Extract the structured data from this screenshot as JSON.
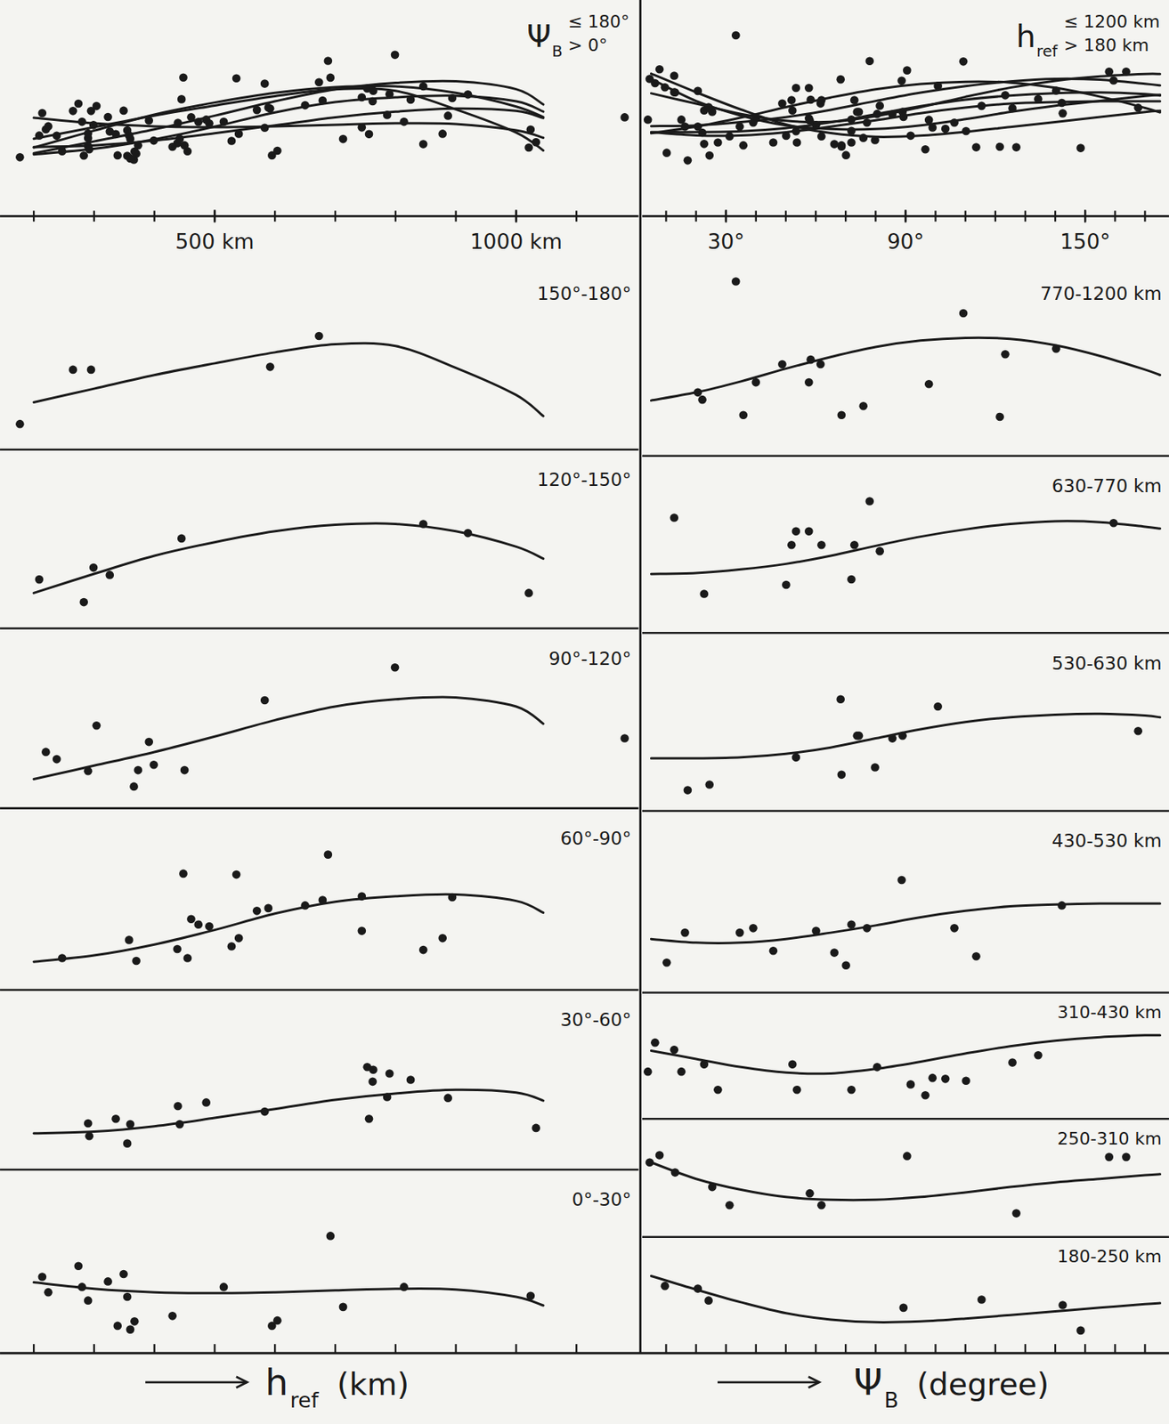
{
  "chart_data": [
    {
      "type": "scatter",
      "overlay_label": {
        "symbol": "Ψ",
        "subscript": "B",
        "upper": "≤ 180°",
        "lower": "> 0°"
      },
      "x_label": {
        "symbol": "h",
        "subscript": "ref",
        "unit": "(km)"
      },
      "xlim": [
        144,
        1203
      ],
      "ylim": [
        0,
        100
      ],
      "overlay_ylim": [
        -20,
        110
      ],
      "xticks": [
        {
          "value": 500,
          "label": "500 km"
        },
        {
          "value": 1000,
          "label": "1000 km"
        }
      ],
      "xminor": [
        200,
        300,
        400,
        500,
        600,
        700,
        800,
        900,
        1000,
        1100
      ],
      "tick_labels": "x",
      "curve_x": [
        200,
        300,
        400,
        500,
        600,
        700,
        800,
        900,
        1000,
        1045
      ],
      "panels": [
        {
          "title": "150°-180°",
          "x": [
            177,
            265,
            295,
            592,
            673
          ],
          "values": [
            13.7,
            42.9,
            42.9,
            44.4,
            61
          ],
          "curve": [
            25.4,
            32.7,
            40,
            46.3,
            52.2,
            56.6,
            55.6,
            43.9,
            29.3,
            18
          ]
        },
        {
          "title": "120°-150°",
          "x": [
            209,
            283,
            299,
            326,
            445,
            846,
            920,
            1021
          ],
          "values": [
            27.4,
            14.7,
            34,
            29.9,
            50.3,
            58.4,
            53.3,
            19.8
          ],
          "curve": [
            19.8,
            30.5,
            40.6,
            48.2,
            54.3,
            57.9,
            58.4,
            54.3,
            45.7,
            39
          ]
        },
        {
          "title": "90°-120°",
          "x": [
            220,
            238,
            290,
            304,
            366,
            373,
            391,
            399,
            450,
            583,
            799,
            1180
          ],
          "values": [
            31.3,
            27.3,
            20.7,
            46,
            12.1,
            21.2,
            36.9,
            24.2,
            21.2,
            60.1,
            78.3,
            38.9
          ],
          "curve": [
            16.2,
            23.7,
            31.3,
            39.9,
            49,
            56.6,
            60.6,
            61.6,
            56.6,
            47
          ]
        },
        {
          "title": "60°-90°",
          "x": [
            247,
            358,
            370,
            438,
            448,
            455,
            461,
            473,
            491,
            528,
            536,
            540,
            570,
            589,
            650,
            679,
            688,
            744,
            744,
            846,
            878,
            894
          ],
          "values": [
            17.5,
            27.5,
            16,
            22.5,
            64,
            17.5,
            39,
            36,
            35,
            24,
            63.5,
            28.5,
            43.5,
            45,
            46.5,
            49.5,
            74.5,
            51.5,
            32.5,
            22,
            28.5,
            51
          ],
          "curve": [
            15.5,
            19,
            25,
            33,
            42,
            48.5,
            51.5,
            52.5,
            49,
            42.5
          ]
        },
        {
          "title": "30°-60°",
          "x": [
            290,
            292,
            336,
            355,
            360,
            439,
            442,
            486,
            583,
            753,
            763,
            762,
            790,
            786,
            756,
            825,
            887,
            1033
          ],
          "values": [
            25.8,
            18.7,
            28.3,
            14.6,
            25.3,
            35.4,
            25.3,
            37.4,
            32.3,
            57.1,
            55.6,
            49,
            53.5,
            40.4,
            28.3,
            50,
            39.9,
            23.2
          ],
          "curve": [
            20.2,
            21.2,
            24.2,
            28.8,
            33.8,
            38.9,
            42.4,
            44.4,
            42.9,
            38.4
          ]
        },
        {
          "title": "0°-30°",
          "x": [
            214,
            224,
            274,
            280,
            290,
            323,
            339,
            349,
            355,
            360,
            367,
            430,
            515,
            595,
            604,
            692,
            713,
            814,
            1024
          ],
          "values": [
            41.6,
            33.2,
            47.5,
            36.1,
            28.7,
            39.1,
            14.9,
            43.1,
            30.7,
            12.9,
            17.3,
            20.3,
            36.1,
            14.9,
            17.8,
            63.9,
            25.2,
            36.1,
            31.2
          ],
          "curve": [
            38.6,
            35.1,
            33.2,
            32.7,
            33.2,
            34.2,
            35.1,
            34.7,
            30.7,
            26
          ]
        }
      ]
    },
    {
      "type": "scatter",
      "overlay_label": {
        "symbol": "h",
        "subscript": "ref",
        "upper": "≤ 1200 km",
        "lower": "> 180 km"
      },
      "x_label": {
        "symbol": "Ψ",
        "subscript": "B",
        "unit": "(degree)"
      },
      "xlim": [
        2,
        178
      ],
      "ylim": [
        0,
        100
      ],
      "overlay_ylim": [
        -20,
        110
      ],
      "xticks": [
        {
          "value": 30,
          "label": "30°"
        },
        {
          "value": 90,
          "label": "90°"
        },
        {
          "value": 150,
          "label": "150°"
        }
      ],
      "xminor": [
        10,
        20,
        30,
        40,
        50,
        60,
        70,
        80,
        90,
        100,
        110,
        120,
        130,
        140,
        150,
        160,
        170
      ],
      "tick_labels": "x",
      "curve_x": [
        5,
        20,
        35,
        50,
        65,
        80,
        95,
        110,
        125,
        140,
        155,
        170,
        175
      ],
      "panels": [
        {
          "title": "770-1200 km",
          "x": [
            20.6,
            22.1,
            33.3,
            35.8,
            40,
            48.8,
            57.7,
            58.3,
            61.6,
            68.6,
            75.9,
            97.8,
            109.3,
            121.5,
            123.3,
            140.3
          ],
          "values": [
            33,
            29.2,
            90.6,
            21.2,
            38.2,
            47.6,
            38.2,
            50,
            47.6,
            21.2,
            25.9,
            37.3,
            74.1,
            20.3,
            52.8,
            55.7
          ],
          "curve": [
            28.8,
            33,
            38.7,
            45.3,
            51.4,
            56.6,
            59.9,
            61.3,
            60.8,
            57.5,
            51.9,
            44.8,
            42
          ]
        },
        {
          "title": "630-770 km",
          "x": [
            12.7,
            22.7,
            50.1,
            51.9,
            53.4,
            57.7,
            61.9,
            71.9,
            72.9,
            78,
            81.4,
            159.5
          ],
          "values": [
            65.1,
            22.1,
            27.2,
            49.7,
            57.4,
            57.4,
            49.7,
            30.3,
            49.7,
            74.4,
            46.2,
            62.1
          ],
          "curve": [
            33.3,
            33.8,
            35.9,
            39,
            43.6,
            49.2,
            54.4,
            58.5,
            61.5,
            63.1,
            62.6,
            60,
            59
          ]
        },
        {
          "title": "530-630 km",
          "x": [
            17.2,
            24.5,
            53.4,
            68.3,
            73.8,
            74.4,
            68.6,
            79.8,
            85.6,
            89,
            100.8,
            167.7
          ],
          "values": [
            11.7,
            14.8,
            30.1,
            62.8,
            42.3,
            42.3,
            20.4,
            24.5,
            40.8,
            42.3,
            58.7,
            44.9
          ],
          "curve": [
            29.6,
            29.6,
            30.1,
            32.1,
            35.7,
            40.8,
            45.9,
            50,
            52.6,
            54.1,
            54.6,
            53.6,
            52.6
          ]
        },
        {
          "title": "430-530 km",
          "x": [
            10.2,
            16.3,
            34.6,
            39.1,
            45.8,
            60.1,
            66.2,
            70.1,
            71.9,
            77.1,
            88.7,
            106.3,
            113.6,
            142.2
          ],
          "values": [
            16.5,
            33,
            33,
            35.5,
            23,
            34,
            22,
            15,
            37.5,
            35.5,
            62,
            35.5,
            20,
            48
          ],
          "curve": [
            29.5,
            27.5,
            27.5,
            29.5,
            33,
            37,
            41.5,
            45,
            47.5,
            48.5,
            49,
            49,
            49
          ]
        },
        {
          "title": "310-430 km",
          "x": [
            3.9,
            6.3,
            12.7,
            15.1,
            22.7,
            27.3,
            52.2,
            53.7,
            71.9,
            80.5,
            91.7,
            96.6,
            99,
            103.3,
            110.2,
            125.7,
            134.3
          ],
          "values": [
            37.4,
            60.4,
            54.7,
            37.4,
            43.2,
            23,
            43.2,
            23,
            23,
            41,
            27.3,
            18.7,
            32.4,
            31.7,
            30.2,
            44.6,
            50.4
          ],
          "curve": [
            54,
            47.5,
            41,
            36.7,
            36,
            39.6,
            45.3,
            51.8,
            57.6,
            61.9,
            64.7,
            66.2,
            66.2
          ]
        },
        {
          "title": "250-310 km",
          "x": [
            4.5,
            7.8,
            13,
            25.4,
            31.2,
            58,
            61.9,
            90.5,
            127,
            158,
            163.7
          ],
          "values": [
            63.1,
            69.2,
            54.6,
            42.3,
            26.9,
            36.9,
            26.9,
            68.5,
            20,
            67.7,
            67.7
          ],
          "curve": [
            63.1,
            49.2,
            40,
            33.8,
            31.5,
            31.5,
            33.8,
            37.7,
            42.3,
            46.2,
            49.2,
            52.3,
            53.1
          ]
        },
        {
          "title": "180-250 km",
          "x": [
            9.6,
            20.6,
            24.2,
            89.3,
            115.4,
            142.5,
            148.5
          ],
          "values": [
            57.8,
            55.5,
            45.3,
            39.1,
            46.1,
            41.4,
            19.5
          ],
          "curve": [
            66.4,
            54.7,
            43.8,
            34.4,
            28.9,
            26.6,
            27.3,
            29.7,
            32.8,
            35.9,
            39.1,
            42.2,
            43
          ]
        }
      ]
    }
  ]
}
